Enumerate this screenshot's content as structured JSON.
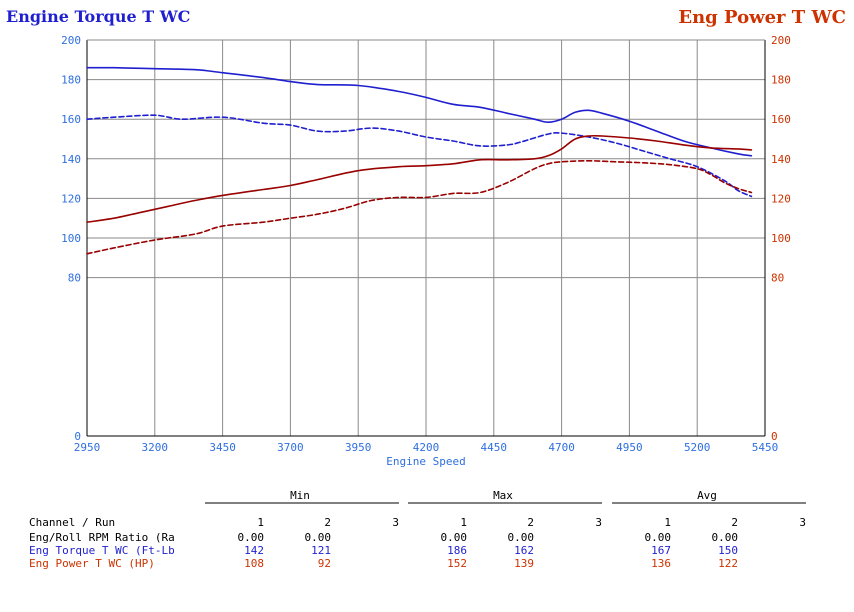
{
  "colors": {
    "torque": "#1f1fcf",
    "power": "#990000",
    "left_axis_text": "#2f6fdf",
    "right_axis_text": "#cc3300",
    "grid": "#8a8a8a",
    "axis": "#000000",
    "table_text": "#000000"
  },
  "chart_data": {
    "type": "line",
    "title_left": "Engine Torque T WC",
    "title_right": "Eng Power T WC",
    "xlabel": "Engine Speed",
    "xlim": [
      2950,
      5450
    ],
    "ylim_left": [
      0,
      200
    ],
    "ylim_right": [
      0,
      200
    ],
    "x_ticks": [
      "2950",
      "3200",
      "3450",
      "3700",
      "3950",
      "4200",
      "4450",
      "4700",
      "4950",
      "5200",
      "5450"
    ],
    "y_ticks_left": [
      "200",
      "180",
      "160",
      "140",
      "120",
      "100",
      "80",
      "0"
    ],
    "y_ticks_right": [
      "200",
      "180",
      "160",
      "140",
      "120",
      "100",
      "80",
      "0"
    ],
    "grid": true,
    "series": [
      {
        "name": "Eng Torque T WC (Ft-Lb)",
        "run": 1,
        "axis": "left",
        "color": "#1f1fcf",
        "dash": false,
        "x": [
          2950,
          3050,
          3200,
          3350,
          3450,
          3600,
          3700,
          3800,
          3950,
          4100,
          4200,
          4300,
          4400,
          4500,
          4600,
          4650,
          4700,
          4750,
          4800,
          4850,
          4950,
          5050,
          5150,
          5250,
          5350,
          5400
        ],
        "y": [
          186,
          186,
          185.5,
          185,
          183.5,
          181,
          179,
          177.5,
          177,
          174,
          171,
          167.5,
          166,
          163,
          160,
          158.5,
          160,
          163.5,
          164.5,
          163,
          159,
          154,
          149,
          145.5,
          142.5,
          141.5
        ]
      },
      {
        "name": "Eng Torque T WC (Ft-Lb)",
        "run": 2,
        "axis": "left",
        "color": "#1f1fcf",
        "dash": true,
        "x": [
          2950,
          3050,
          3200,
          3300,
          3450,
          3600,
          3700,
          3800,
          3900,
          4000,
          4100,
          4200,
          4300,
          4400,
          4500,
          4550,
          4650,
          4700,
          4800,
          4900,
          5000,
          5100,
          5200,
          5300,
          5350,
          5400
        ],
        "y": [
          160,
          161,
          162,
          160,
          161,
          158,
          157,
          154,
          154,
          155.5,
          154,
          151,
          149,
          146.5,
          147,
          148.5,
          152.5,
          153,
          151,
          148,
          144,
          140,
          136,
          129,
          124,
          121
        ]
      },
      {
        "name": "Eng Power T WC (HP)",
        "run": 1,
        "axis": "right",
        "color": "#990000",
        "dash": false,
        "x": [
          2950,
          3050,
          3150,
          3250,
          3350,
          3450,
          3600,
          3700,
          3800,
          3950,
          4100,
          4200,
          4300,
          4400,
          4500,
          4600,
          4650,
          4700,
          4750,
          4800,
          4850,
          4950,
          5050,
          5150,
          5250,
          5350,
          5400
        ],
        "y": [
          108,
          110,
          113,
          116,
          119,
          121.5,
          124.5,
          126.5,
          129.5,
          134,
          136,
          136.5,
          137.5,
          139.5,
          139.5,
          140,
          141.5,
          145,
          150,
          151.5,
          151.5,
          150.5,
          149,
          147,
          145.5,
          145,
          144.5
        ]
      },
      {
        "name": "Eng Power T WC (HP)",
        "run": 2,
        "axis": "right",
        "color": "#990000",
        "dash": true,
        "x": [
          2950,
          3050,
          3200,
          3350,
          3450,
          3600,
          3700,
          3800,
          3900,
          4000,
          4100,
          4200,
          4300,
          4400,
          4500,
          4600,
          4650,
          4700,
          4800,
          4900,
          5000,
          5100,
          5200,
          5250,
          5300,
          5350,
          5400
        ],
        "y": [
          92,
          95,
          99,
          102,
          106,
          108,
          110,
          112,
          115,
          119,
          120.5,
          120.5,
          122.5,
          123,
          128,
          135,
          137.5,
          138.5,
          139,
          138.5,
          138,
          137,
          135,
          132,
          128,
          125,
          123
        ]
      }
    ]
  },
  "table": {
    "groups": [
      "Min",
      "Max",
      "Avg"
    ],
    "header_label": "Channel / Run",
    "run_numbers": [
      "1",
      "2",
      "3"
    ],
    "rows": [
      {
        "label": "Eng/Roll RPM Ratio (Ra",
        "color": "#000000",
        "values": [
          "0.00",
          "0.00",
          "",
          "0.00",
          "0.00",
          "",
          "0.00",
          "0.00",
          ""
        ]
      },
      {
        "label": "Eng Torque T WC (Ft-Lb",
        "color": "#1f1fcf",
        "values": [
          "142",
          "121",
          "",
          "186",
          "162",
          "",
          "167",
          "150",
          ""
        ]
      },
      {
        "label": "Eng Power T WC (HP)",
        "color": "#cc3300",
        "values": [
          "108",
          "92",
          "",
          "152",
          "139",
          "",
          "136",
          "122",
          ""
        ]
      }
    ]
  }
}
